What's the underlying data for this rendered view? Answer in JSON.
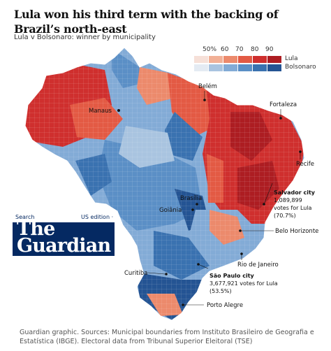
{
  "headline": "Lula won his third term with the backing of Brazil’s north-east",
  "subtitle": "Lula v Bolsonaro: winner by municipality",
  "legend": {
    "ticks": [
      "50%",
      "60",
      "70",
      "80",
      "90"
    ],
    "lula_label": "Lula",
    "bolsonaro_label": "Bolsonaro",
    "lula_colors": [
      "#f6e0d8",
      "#f2b096",
      "#ec8a6c",
      "#e35a44",
      "#cf2f2e",
      "#ad1d22"
    ],
    "bolsonaro_colors": [
      "#e4ebf3",
      "#a9c4e0",
      "#83abd6",
      "#5b8fc6",
      "#3a72b0",
      "#245493"
    ]
  },
  "cities": {
    "manaus": "Manaus",
    "belem": "Belém",
    "fortaleza": "Fortaleza",
    "recife": "Recife",
    "brasilia": "Brasília",
    "goiania": "Goiânia",
    "belo_horizonte": "Belo Horizonte",
    "rio": "Rio de Janeiro",
    "curitiba": "Curitiba",
    "porto_alegre": "Porto Alegre"
  },
  "annotations": {
    "salvador": {
      "title": "Salvador city",
      "votes": "1,089,899",
      "line": "votes for Lula",
      "pct": "(70.7%)"
    },
    "sao_paulo": {
      "title": "São Paulo city",
      "line": "3,677,921 votes for Lula",
      "pct": "(53.5%)"
    }
  },
  "guardian": {
    "search": "Search",
    "edition": "US edition ·",
    "logo_line1": "The",
    "logo_line2": "Guardian"
  },
  "footer": "Guardian graphic. Sources: Municipal boundaries from Instituto Brasileiro de Geografia e Estatística (IBGE). Electoral data from Tribunal Superior Eleitoral (TSE)"
}
